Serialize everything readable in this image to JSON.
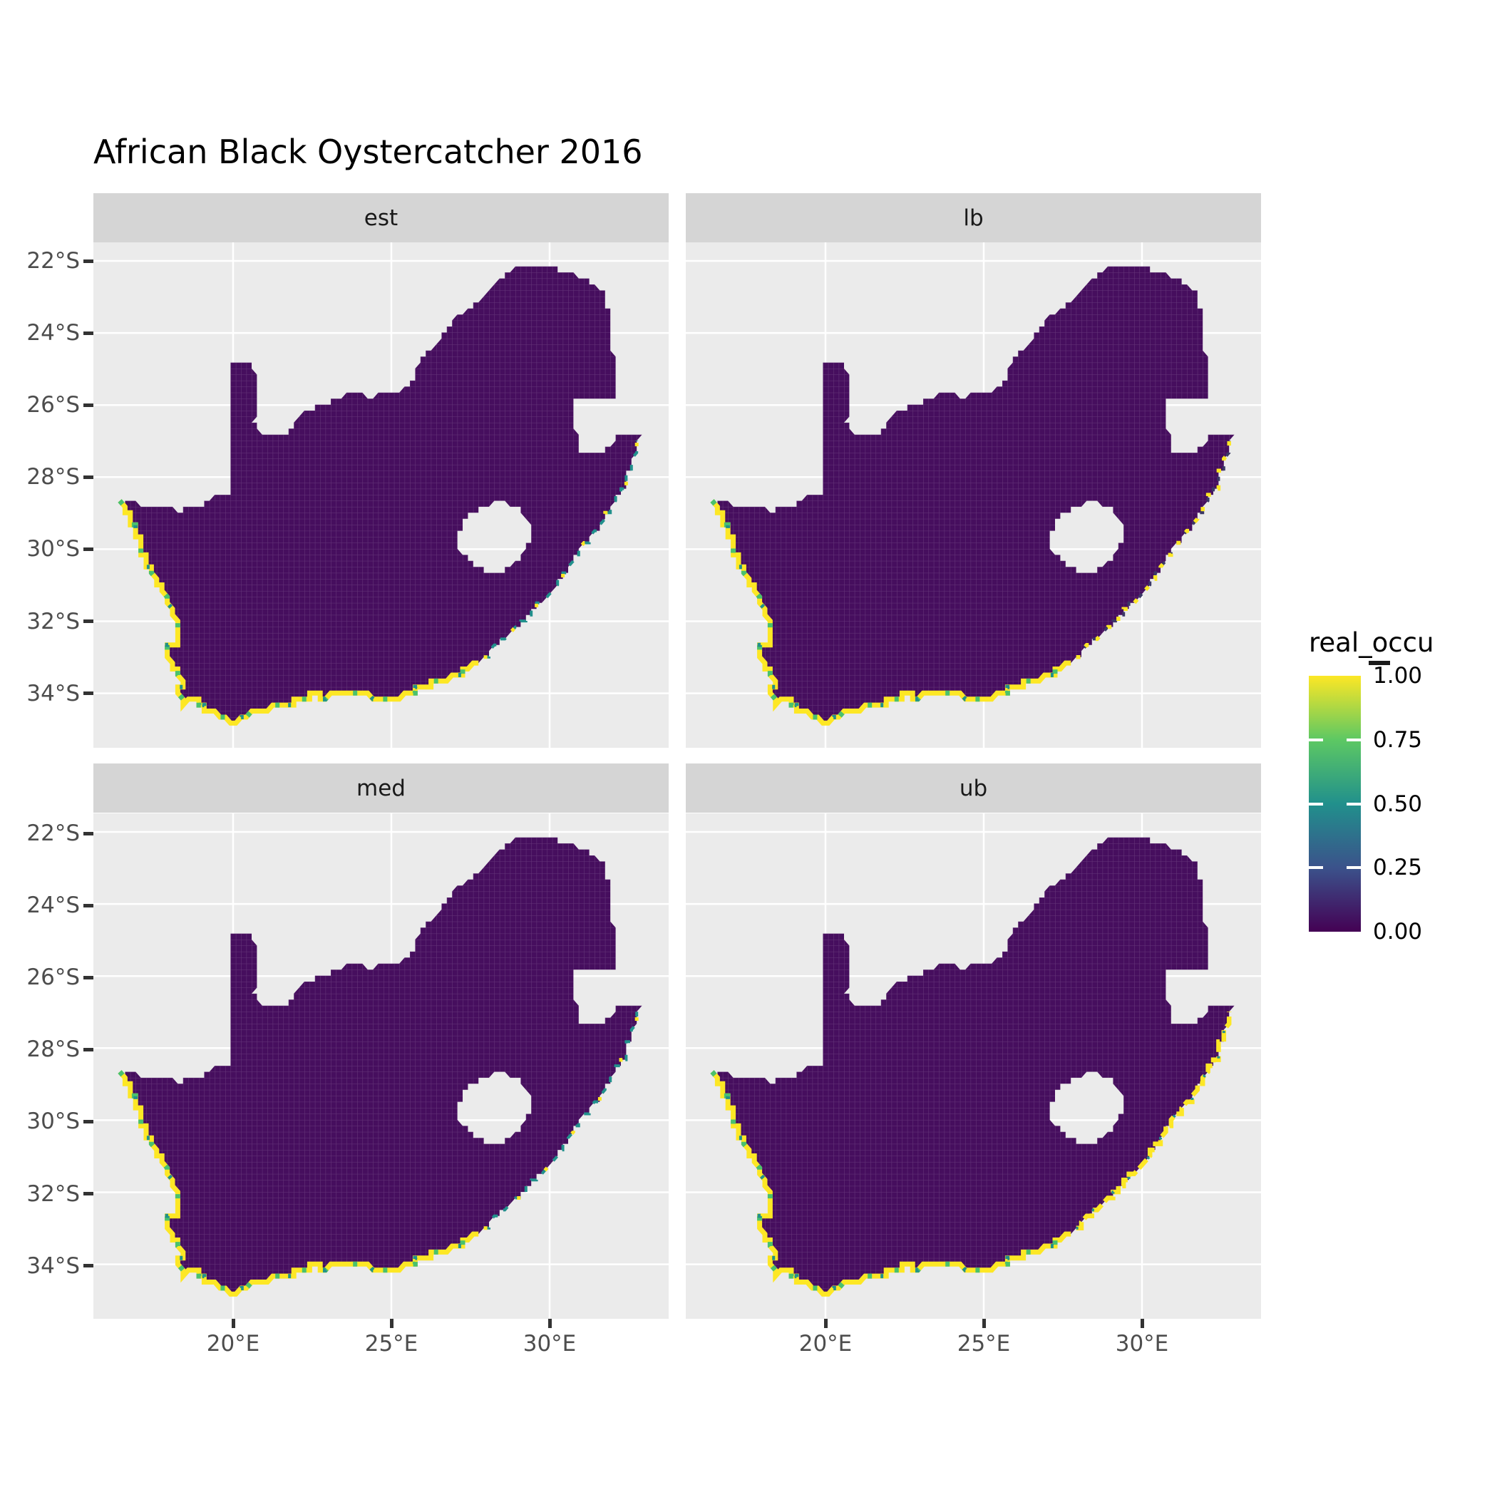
{
  "title": "African Black Oystercatcher 2016",
  "legend": {
    "title": "real_occu",
    "tick_labels": [
      "1.00",
      "0.75",
      "0.50",
      "0.25",
      "0.00"
    ],
    "gradient": [
      "#FDE725",
      "#5DC863",
      "#21908C",
      "#3B528B",
      "#440154"
    ]
  },
  "colors": {
    "panel_bg": "#EBEBEB",
    "strip_bg": "#D5D5D5",
    "grid": "#FFFFFF",
    "land": "#460E5E",
    "land_grid": "rgba(255,255,255,0.17)",
    "coast_yellow": "#FDE725",
    "coast_green": "#4AC16D",
    "coast_teal": "#21908C",
    "axis_text": "#4D4D4D",
    "tick": "#333333"
  },
  "chart_data": {
    "type": "heatmap",
    "description": "Faceted raster maps of South Africa showing realized occupancy (real_occu, 0 to 1, viridis scale). Interior cells are ~0 (dark purple); coastal cells approach 1 (yellow).",
    "facets": [
      {
        "label": "est",
        "east_strokes": [
          {
            "color": "#21908C",
            "width": 4,
            "dash": "8 14"
          },
          {
            "color": "#FDE725",
            "width": 5,
            "dash": "5 60"
          }
        ]
      },
      {
        "label": "lb",
        "east_strokes": [
          {
            "color": "#3B3866",
            "width": 4,
            "dash": "6 16"
          },
          {
            "color": "#FDE725",
            "width": 5.5,
            "dash": "6 18"
          }
        ]
      },
      {
        "label": "med",
        "east_strokes": [
          {
            "color": "#21908C",
            "width": 4,
            "dash": "8 16"
          },
          {
            "color": "#FDE725",
            "width": 5,
            "dash": "5 70"
          }
        ]
      },
      {
        "label": "ub",
        "east_strokes": [
          {
            "color": "#FDE725",
            "width": 6.5,
            "dash": "16 6"
          },
          {
            "color": "#21908C",
            "width": 4,
            "dash": "3 40"
          }
        ]
      }
    ],
    "x_axis": {
      "ticks": [
        20,
        25,
        30
      ],
      "labels": [
        "20°E",
        "25°E",
        "30°E"
      ]
    },
    "y_axis": {
      "ticks": [
        22,
        24,
        26,
        28,
        30,
        32,
        34
      ],
      "labels": [
        "22°S",
        "24°S",
        "26°S",
        "28°S",
        "30°S",
        "32°S",
        "34°S"
      ]
    },
    "value_scale": {
      "name": "real_occu",
      "min": 0.0,
      "max": 1.0,
      "legend_values": [
        1.0,
        0.75,
        0.5,
        0.25,
        0.0
      ]
    },
    "outline": [
      [
        16.45,
        28.58
      ],
      [
        17.1,
        28.78
      ],
      [
        17.75,
        28.8
      ],
      [
        18.25,
        28.92
      ],
      [
        18.85,
        28.85
      ],
      [
        19.35,
        28.52
      ],
      [
        19.99,
        28.4
      ],
      [
        19.99,
        24.75
      ],
      [
        20.6,
        24.75
      ],
      [
        20.78,
        25.55
      ],
      [
        20.66,
        26.45
      ],
      [
        20.9,
        26.82
      ],
      [
        21.65,
        26.86
      ],
      [
        22.25,
        26.15
      ],
      [
        22.95,
        25.98
      ],
      [
        23.7,
        25.6
      ],
      [
        24.25,
        25.76
      ],
      [
        25.05,
        25.7
      ],
      [
        25.6,
        25.48
      ],
      [
        25.92,
        24.72
      ],
      [
        26.5,
        24.28
      ],
      [
        26.95,
        23.62
      ],
      [
        27.65,
        23.2
      ],
      [
        28.3,
        22.62
      ],
      [
        28.95,
        22.15
      ],
      [
        29.8,
        22.13
      ],
      [
        30.5,
        22.3
      ],
      [
        31.25,
        22.55
      ],
      [
        31.7,
        22.9
      ],
      [
        31.95,
        23.6
      ],
      [
        32.0,
        24.5
      ],
      [
        32.05,
        25.2
      ],
      [
        32.05,
        25.82
      ],
      [
        31.35,
        25.78
      ],
      [
        30.82,
        25.88
      ],
      [
        30.72,
        26.35
      ],
      [
        30.88,
        26.85
      ],
      [
        31.0,
        27.32
      ],
      [
        31.6,
        27.32
      ],
      [
        31.98,
        27.08
      ],
      [
        32.13,
        26.86
      ],
      [
        32.85,
        26.88
      ],
      [
        32.62,
        27.55
      ],
      [
        32.35,
        28.25
      ],
      [
        32.0,
        28.8
      ],
      [
        31.65,
        29.28
      ],
      [
        31.05,
        29.88
      ],
      [
        30.62,
        30.45
      ],
      [
        30.2,
        31.05
      ],
      [
        29.5,
        31.7
      ],
      [
        28.8,
        32.28
      ],
      [
        28.15,
        32.8
      ],
      [
        27.9,
        33.03
      ],
      [
        27.1,
        33.5
      ],
      [
        26.4,
        33.73
      ],
      [
        25.95,
        33.78
      ],
      [
        25.65,
        34.02
      ],
      [
        24.9,
        34.18
      ],
      [
        24.2,
        34.05
      ],
      [
        23.4,
        33.97
      ],
      [
        22.95,
        34.1
      ],
      [
        22.5,
        34.06
      ],
      [
        22.15,
        34.16
      ],
      [
        21.45,
        34.38
      ],
      [
        20.7,
        34.48
      ],
      [
        20.0,
        34.82
      ],
      [
        19.58,
        34.6
      ],
      [
        19.32,
        34.44
      ],
      [
        18.98,
        34.38
      ],
      [
        18.8,
        34.1
      ],
      [
        18.58,
        34.16
      ],
      [
        18.45,
        34.36
      ],
      [
        18.3,
        34.05
      ],
      [
        18.32,
        33.88
      ],
      [
        18.45,
        33.65
      ],
      [
        18.12,
        33.33
      ],
      [
        17.88,
        32.78
      ],
      [
        18.28,
        32.62
      ],
      [
        18.18,
        31.95
      ],
      [
        17.85,
        31.3
      ],
      [
        17.25,
        30.35
      ],
      [
        16.92,
        29.45
      ],
      [
        16.62,
        28.95
      ]
    ],
    "lesotho_hole": [
      [
        27.02,
        29.68
      ],
      [
        27.38,
        29.08
      ],
      [
        27.82,
        28.88
      ],
      [
        28.42,
        28.62
      ],
      [
        29.02,
        28.9
      ],
      [
        29.38,
        29.28
      ],
      [
        29.45,
        29.75
      ],
      [
        29.1,
        30.2
      ],
      [
        28.55,
        30.58
      ],
      [
        27.95,
        30.62
      ],
      [
        27.42,
        30.25
      ],
      [
        27.05,
        29.98
      ]
    ],
    "coast_main": [
      [
        16.45,
        28.62
      ],
      [
        16.62,
        28.95
      ],
      [
        16.92,
        29.45
      ],
      [
        17.25,
        30.35
      ],
      [
        17.85,
        31.3
      ],
      [
        18.18,
        31.95
      ],
      [
        18.28,
        32.62
      ],
      [
        17.88,
        32.78
      ],
      [
        18.12,
        33.33
      ],
      [
        18.45,
        33.65
      ],
      [
        18.32,
        33.88
      ],
      [
        18.3,
        34.05
      ],
      [
        18.45,
        34.36
      ],
      [
        18.58,
        34.16
      ],
      [
        18.8,
        34.1
      ],
      [
        18.98,
        34.38
      ],
      [
        19.32,
        34.44
      ],
      [
        19.58,
        34.6
      ],
      [
        20.0,
        34.82
      ],
      [
        20.7,
        34.48
      ],
      [
        21.45,
        34.38
      ],
      [
        22.15,
        34.16
      ],
      [
        22.5,
        34.06
      ],
      [
        22.95,
        34.1
      ],
      [
        23.4,
        33.97
      ],
      [
        24.2,
        34.05
      ],
      [
        24.9,
        34.18
      ],
      [
        25.65,
        34.02
      ],
      [
        25.95,
        33.78
      ],
      [
        26.4,
        33.73
      ],
      [
        27.1,
        33.5
      ],
      [
        27.9,
        33.03
      ]
    ],
    "coast_east": [
      [
        27.9,
        33.03
      ],
      [
        28.15,
        32.8
      ],
      [
        28.8,
        32.28
      ],
      [
        29.5,
        31.7
      ],
      [
        30.2,
        31.05
      ],
      [
        30.62,
        30.45
      ],
      [
        31.05,
        29.88
      ],
      [
        31.65,
        29.28
      ],
      [
        32.0,
        28.8
      ],
      [
        32.35,
        28.25
      ],
      [
        32.62,
        27.55
      ],
      [
        32.85,
        26.88
      ]
    ]
  }
}
